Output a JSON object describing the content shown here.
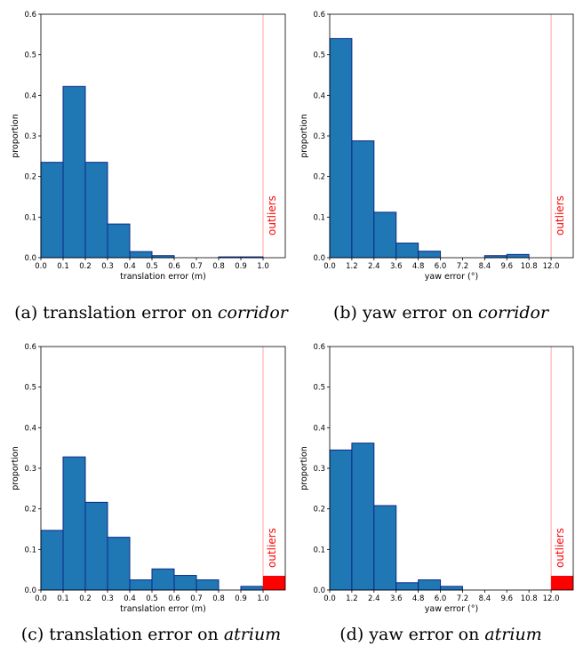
{
  "chart_data": [
    {
      "type": "bar",
      "xlabel": "translation error (m)",
      "ylabel": "proportion",
      "ylim": [
        0,
        0.6
      ],
      "xlim": [
        0,
        1.1
      ],
      "yticks": [
        "0.0",
        "0.1",
        "0.2",
        "0.3",
        "0.4",
        "0.5",
        "0.6"
      ],
      "xticks": [
        "0.0",
        "0.1",
        "0.2",
        "0.3",
        "0.4",
        "0.5",
        "0.6",
        "0.7",
        "0.8",
        "0.9",
        "1.0"
      ],
      "bin_edges": [
        0,
        0.1,
        0.2,
        0.3,
        0.4,
        0.5,
        0.6,
        0.7,
        0.8,
        0.9,
        1.0
      ],
      "values": [
        0.235,
        0.422,
        0.235,
        0.083,
        0.015,
        0.005,
        0.0,
        0.0,
        0.002,
        0.002
      ],
      "bar_color": "#1f77b4",
      "outlier_threshold": 1.0,
      "outlier_label": "outliers",
      "outlier_value": 0.0,
      "outlier_color": "#ff0000",
      "caption_prefix": "(a) translation error on ",
      "caption_em": "corridor"
    },
    {
      "type": "bar",
      "xlabel": "yaw error (°)",
      "ylabel": "proportion",
      "ylim": [
        0,
        0.6
      ],
      "xlim": [
        0,
        13.2
      ],
      "yticks": [
        "0.0",
        "0.1",
        "0.2",
        "0.3",
        "0.4",
        "0.5",
        "0.6"
      ],
      "xticks": [
        "0.0",
        "1.2",
        "2.4",
        "3.6",
        "4.8",
        "6.0",
        "7.2",
        "8.4",
        "9.6",
        "10.8",
        "12.0"
      ],
      "bin_edges": [
        0,
        1.2,
        2.4,
        3.6,
        4.8,
        6.0,
        7.2,
        8.4,
        9.6,
        10.8,
        12.0
      ],
      "values": [
        0.54,
        0.288,
        0.112,
        0.036,
        0.016,
        0.0,
        0.0,
        0.005,
        0.008,
        0.0
      ],
      "bar_color": "#1f77b4",
      "outlier_threshold": 12.0,
      "outlier_label": "outliers",
      "outlier_value": 0.0,
      "outlier_color": "#ff0000",
      "caption_prefix": "(b) yaw error on ",
      "caption_em": "corridor"
    },
    {
      "type": "bar",
      "xlabel": "translation error (m)",
      "ylabel": "proportion",
      "ylim": [
        0,
        0.6
      ],
      "xlim": [
        0,
        1.1
      ],
      "yticks": [
        "0.0",
        "0.1",
        "0.2",
        "0.3",
        "0.4",
        "0.5",
        "0.6"
      ],
      "xticks": [
        "0.0",
        "0.1",
        "0.2",
        "0.3",
        "0.4",
        "0.5",
        "0.6",
        "0.7",
        "0.8",
        "0.9",
        "1.0"
      ],
      "bin_edges": [
        0,
        0.1,
        0.2,
        0.3,
        0.4,
        0.5,
        0.6,
        0.7,
        0.8,
        0.9,
        1.0
      ],
      "values": [
        0.147,
        0.328,
        0.216,
        0.13,
        0.025,
        0.052,
        0.036,
        0.025,
        0.0,
        0.009
      ],
      "bar_color": "#1f77b4",
      "outlier_threshold": 1.0,
      "outlier_label": "outliers",
      "outlier_value": 0.035,
      "outlier_color": "#ff0000",
      "caption_prefix": "(c) translation error on ",
      "caption_em": "atrium"
    },
    {
      "type": "bar",
      "xlabel": "yaw error (°)",
      "ylabel": "proportion",
      "ylim": [
        0,
        0.6
      ],
      "xlim": [
        0,
        13.2
      ],
      "yticks": [
        "0.0",
        "0.1",
        "0.2",
        "0.3",
        "0.4",
        "0.5",
        "0.6"
      ],
      "xticks": [
        "0.0",
        "1.2",
        "2.4",
        "3.6",
        "4.8",
        "6.0",
        "7.2",
        "8.4",
        "9.6",
        "10.8",
        "12.0"
      ],
      "bin_edges": [
        0,
        1.2,
        2.4,
        3.6,
        4.8,
        6.0,
        7.2,
        8.4,
        9.6,
        10.8,
        12.0
      ],
      "values": [
        0.345,
        0.362,
        0.208,
        0.018,
        0.025,
        0.009,
        0.0,
        0.0,
        0.0,
        0.0
      ],
      "bar_color": "#1f77b4",
      "outlier_threshold": 12.0,
      "outlier_label": "outliers",
      "outlier_value": 0.035,
      "outlier_color": "#ff0000",
      "caption_prefix": "(d) yaw error on ",
      "caption_em": "atrium"
    }
  ]
}
